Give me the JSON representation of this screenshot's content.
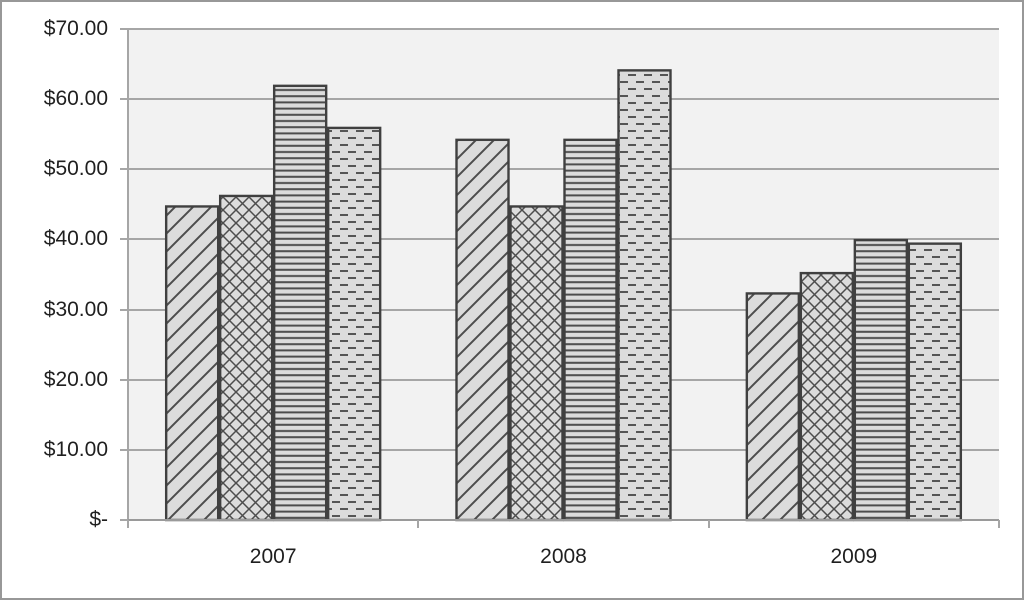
{
  "chart_data": {
    "type": "bar",
    "title": "",
    "legend": "none",
    "grid": true,
    "ylim": [
      0,
      70
    ],
    "xlabel": "",
    "ylabel": "",
    "categories": [
      "2007",
      "2008",
      "2009"
    ],
    "series": [
      {
        "name": "series-1-diagonal-hatch",
        "pattern": "diagonal",
        "values": [
          44.7,
          54.2,
          32.3
        ]
      },
      {
        "name": "series-2-crosshatch",
        "pattern": "crosshatch",
        "values": [
          46.2,
          44.7,
          35.2
        ]
      },
      {
        "name": "series-3-horizontal-lines",
        "pattern": "horizontal",
        "values": [
          61.9,
          54.2,
          39.9
        ]
      },
      {
        "name": "series-4-dashed-lines",
        "pattern": "dashed",
        "values": [
          55.9,
          64.1,
          39.4
        ]
      }
    ],
    "y_ticks": [
      {
        "label": "$70.00",
        "value": 70
      },
      {
        "label": "$60.00",
        "value": 60
      },
      {
        "label": "$50.00",
        "value": 50
      },
      {
        "label": "$40.00",
        "value": 40
      },
      {
        "label": "$30.00",
        "value": 30
      },
      {
        "label": "$20.00",
        "value": 20
      },
      {
        "label": "$10.00",
        "value": 10
      },
      {
        "label": "$-",
        "value": 0
      }
    ]
  },
  "colors": {
    "plot_background": "#f2f2f2",
    "gridline": "#a6a6a6",
    "axis": "#a6a6a6",
    "bar_fill": "#dcdcdc",
    "bar_border": "#404040",
    "pattern_stroke": "#4d4d4d",
    "text": "#1f1f1f",
    "canvas_border": "#989898"
  }
}
